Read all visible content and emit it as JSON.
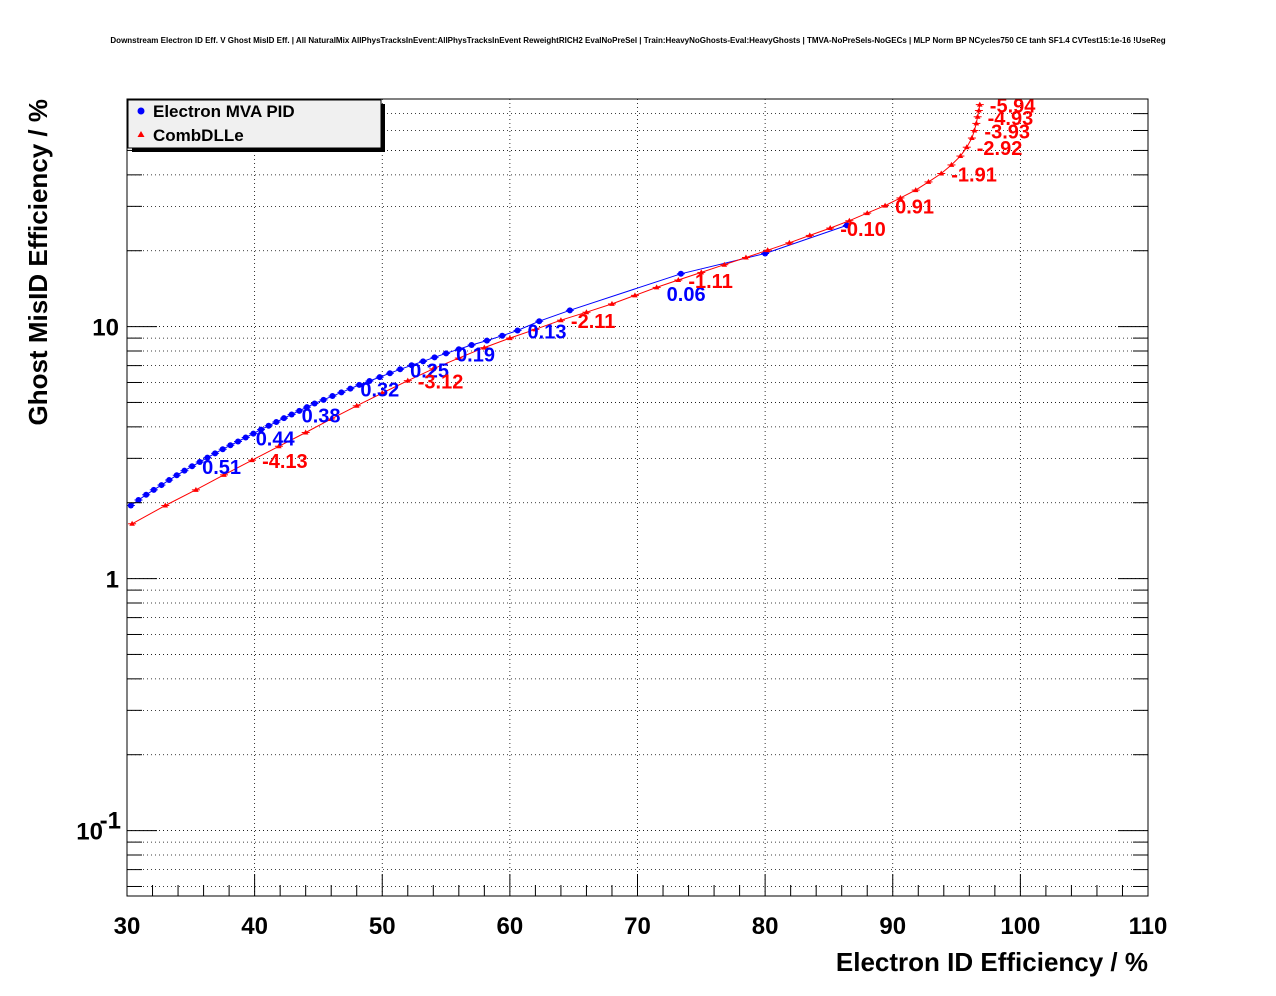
{
  "chart_data": {
    "type": "line",
    "title": "Downstream Electron ID Eff. V Ghost MisID Eff. | All NaturalMix AllPhysTracksInEvent:AllPhysTracksInEvent ReweightRICH2 EvalNoPreSel | Train:HeavyNoGhosts-Eval:HeavyGhosts | TMVA-NoPreSels-NoGECs | MLP Norm BP NCycles750 CE tanh SF1.4 CVTest15:1e-16 !UseReg",
    "xlabel": "Electron ID Efficiency / %",
    "ylabel": "Ghost MisID Efficiency / %",
    "xlim": [
      30,
      110
    ],
    "ylim": [
      0.055,
      80
    ],
    "yscale": "log",
    "grid": true,
    "legend_position": "top-left",
    "x_ticks": [
      "30",
      "40",
      "50",
      "60",
      "70",
      "80",
      "90",
      "100",
      "110"
    ],
    "y_ticks": [
      {
        "value": 10,
        "label": "10"
      },
      {
        "value": 1,
        "label": "1"
      },
      {
        "value": 0.1,
        "label": "10",
        "sup": "-1"
      }
    ],
    "series": [
      {
        "name": "Electron MVA PID",
        "color": "#0000ff",
        "marker": "circle",
        "x": [
          30.3,
          30.9,
          31.5,
          32.1,
          32.7,
          33.3,
          33.9,
          34.5,
          35.1,
          35.7,
          36.3,
          36.9,
          37.5,
          38.1,
          38.7,
          39.3,
          39.9,
          40.5,
          41.1,
          41.7,
          42.3,
          42.9,
          43.5,
          44.1,
          44.7,
          45.4,
          46.1,
          46.8,
          47.5,
          48.2,
          49.0,
          49.8,
          50.6,
          51.4,
          52.3,
          53.2,
          54.1,
          55.0,
          56.0,
          57.0,
          58.2,
          59.4,
          60.6,
          62.3,
          64.7,
          73.4,
          80.0,
          86.4
        ],
        "y": [
          1.95,
          2.05,
          2.15,
          2.25,
          2.35,
          2.46,
          2.57,
          2.68,
          2.79,
          2.9,
          3.02,
          3.14,
          3.26,
          3.38,
          3.5,
          3.63,
          3.76,
          3.9,
          4.04,
          4.18,
          4.33,
          4.48,
          4.63,
          4.79,
          4.95,
          5.12,
          5.3,
          5.48,
          5.67,
          5.87,
          6.08,
          6.3,
          6.53,
          6.77,
          7.02,
          7.28,
          7.55,
          7.83,
          8.13,
          8.45,
          8.8,
          9.2,
          9.65,
          10.5,
          11.6,
          16.2,
          19.5,
          25.2
        ]
      },
      {
        "name": "CombDLLe",
        "color": "#ff0000",
        "marker": "triangle",
        "x": [
          30.4,
          33.0,
          35.4,
          37.6,
          39.8,
          41.9,
          44.0,
          46.0,
          48.0,
          50.0,
          52.0,
          54.0,
          56.0,
          58.0,
          60.0,
          62.0,
          64.0,
          66.0,
          68.0,
          69.8,
          71.5,
          73.2,
          75.0,
          76.8,
          78.5,
          80.2,
          81.9,
          83.5,
          85.1,
          86.6,
          88.0,
          89.4,
          90.6,
          91.8,
          92.8,
          93.8,
          94.6,
          95.3,
          95.8,
          96.2,
          96.4,
          96.55,
          96.65,
          96.75,
          96.82
        ],
        "y": [
          1.65,
          1.95,
          2.25,
          2.58,
          2.95,
          3.35,
          3.8,
          4.3,
          4.85,
          5.45,
          6.1,
          6.8,
          7.5,
          8.25,
          9.0,
          9.75,
          10.6,
          11.4,
          12.3,
          13.3,
          14.3,
          15.3,
          16.4,
          17.6,
          18.8,
          20.1,
          21.5,
          23.0,
          24.6,
          26.3,
          28.2,
          30.2,
          32.4,
          34.8,
          37.5,
          40.5,
          43.8,
          47.5,
          51.5,
          56.0,
          60.0,
          64.0,
          68.0,
          72.0,
          76.0
        ]
      }
    ],
    "annotations": [
      {
        "text": "0.51",
        "x": 35.1,
        "y": 2.8,
        "color": "#0000ff"
      },
      {
        "text": "0.44",
        "x": 39.3,
        "y": 3.63,
        "color": "#0000ff"
      },
      {
        "text": "0.38",
        "x": 42.9,
        "y": 4.48,
        "color": "#0000ff"
      },
      {
        "text": "0.32",
        "x": 47.5,
        "y": 5.67,
        "color": "#0000ff"
      },
      {
        "text": "0.25",
        "x": 51.4,
        "y": 6.77,
        "color": "#0000ff"
      },
      {
        "text": "0.19",
        "x": 55.0,
        "y": 7.83,
        "color": "#0000ff"
      },
      {
        "text": "0.13",
        "x": 60.6,
        "y": 9.65,
        "color": "#0000ff"
      },
      {
        "text": "0.06",
        "x": 71.5,
        "y": 13.6,
        "color": "#0000ff"
      },
      {
        "text": "-4.13",
        "x": 39.8,
        "y": 2.95,
        "color": "#ff0000"
      },
      {
        "text": "-3.12",
        "x": 52.0,
        "y": 6.1,
        "color": "#ff0000"
      },
      {
        "text": "-2.11",
        "x": 64.0,
        "y": 10.6,
        "color": "#ff0000"
      },
      {
        "text": "-1.11",
        "x": 73.2,
        "y": 15.3,
        "color": "#ff0000"
      },
      {
        "text": "-0.10",
        "x": 85.1,
        "y": 24.6,
        "color": "#ff0000"
      },
      {
        "text": "0.91",
        "x": 89.4,
        "y": 30.2,
        "color": "#ff0000"
      },
      {
        "text": "-1.91",
        "x": 93.8,
        "y": 40.5,
        "color": "#ff0000"
      },
      {
        "text": "-2.92",
        "x": 95.8,
        "y": 51.5,
        "color": "#ff0000"
      },
      {
        "text": "-3.93",
        "x": 96.4,
        "y": 60.0,
        "color": "#ff0000"
      },
      {
        "text": "-4.93",
        "x": 96.65,
        "y": 68.0,
        "color": "#ff0000"
      },
      {
        "text": "-5.94",
        "x": 96.82,
        "y": 76.0,
        "color": "#ff0000"
      }
    ]
  }
}
